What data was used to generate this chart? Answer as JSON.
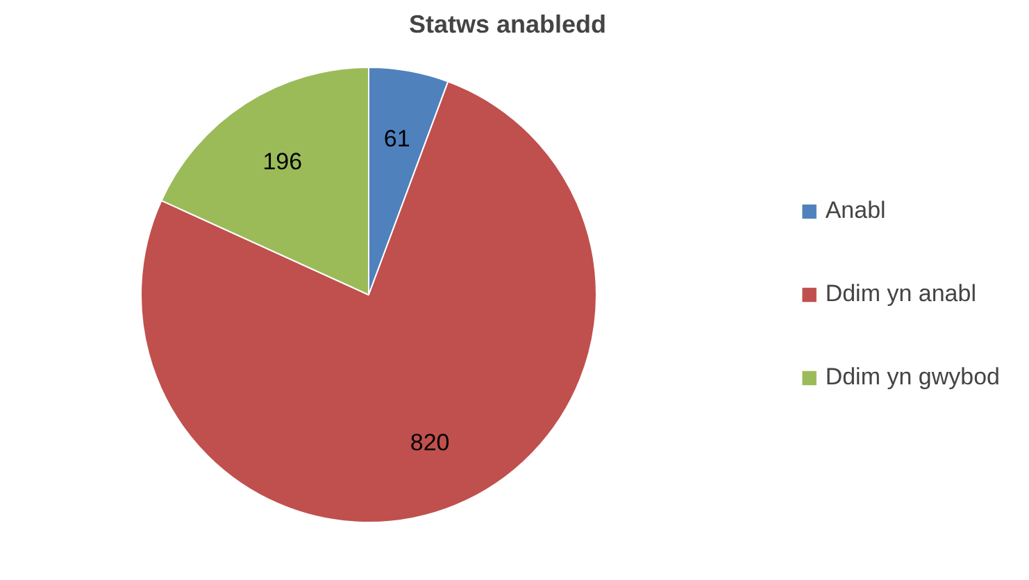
{
  "chart_data": {
    "type": "pie",
    "title": "Statws anabledd",
    "categories": [
      "Anabl",
      "Ddim yn anabl",
      "Ddim yn gwybod"
    ],
    "values": [
      61,
      820,
      196
    ],
    "colors": [
      "#4f81bd",
      "#c0504d",
      "#9bbb59"
    ],
    "data_labels": true,
    "legend": "right"
  }
}
